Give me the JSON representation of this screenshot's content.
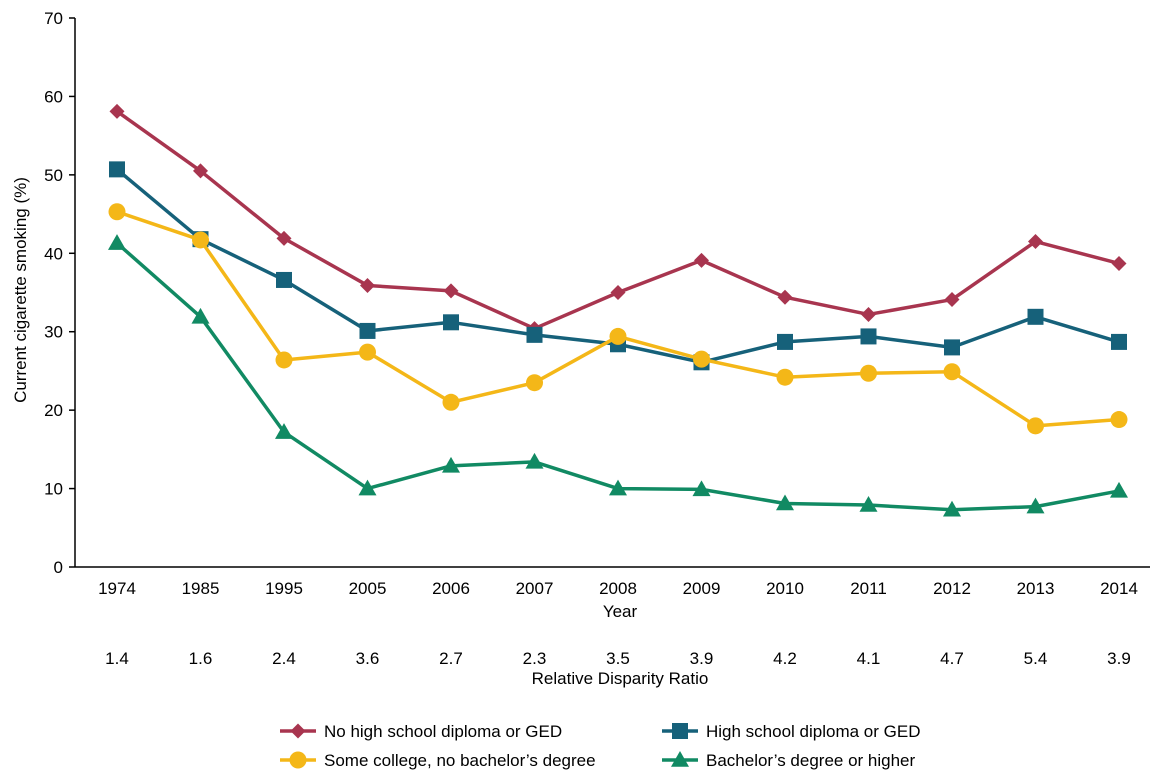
{
  "chart_data": {
    "type": "line",
    "title": "",
    "xlabel": "Year",
    "ylabel": "Current cigarette smoking (%)",
    "ylim": [
      0,
      70
    ],
    "yticks": [
      0,
      10,
      20,
      30,
      40,
      50,
      60,
      70
    ],
    "categories": [
      "1974",
      "1985",
      "1995",
      "2005",
      "2006",
      "2007",
      "2008",
      "2009",
      "2010",
      "2011",
      "2012",
      "2013",
      "2014"
    ],
    "ratio_label": "Relative Disparity Ratio",
    "ratios": [
      "1.4",
      "1.6",
      "2.4",
      "3.6",
      "2.7",
      "2.3",
      "3.5",
      "3.9",
      "4.2",
      "4.1",
      "4.7",
      "5.4",
      "3.9"
    ],
    "grid": false,
    "legend_position": "bottom",
    "series": [
      {
        "name": "No high school diploma or GED",
        "color": "#A8354F",
        "marker": "diamond",
        "values": [
          58.1,
          50.5,
          41.9,
          35.9,
          35.2,
          30.4,
          35.0,
          39.1,
          34.4,
          32.2,
          34.1,
          41.5,
          38.7
        ]
      },
      {
        "name": "High school diploma or GED",
        "color": "#16617A",
        "marker": "square",
        "values": [
          50.7,
          41.8,
          36.6,
          30.1,
          31.2,
          29.6,
          28.4,
          26.1,
          28.7,
          29.4,
          28.0,
          31.9,
          28.7
        ]
      },
      {
        "name": "Some college, no bachelor’s degree",
        "color": "#F4B718",
        "marker": "circle",
        "values": [
          45.3,
          41.7,
          26.4,
          27.4,
          21.0,
          23.5,
          29.4,
          26.5,
          24.2,
          24.7,
          24.9,
          18.0,
          18.8
        ]
      },
      {
        "name": "Bachelor’s degree or higher",
        "color": "#118A63",
        "marker": "triangle",
        "values": [
          41.3,
          31.9,
          17.2,
          10.0,
          12.9,
          13.4,
          10.0,
          9.9,
          8.1,
          7.9,
          7.3,
          7.7,
          9.7
        ]
      }
    ]
  }
}
